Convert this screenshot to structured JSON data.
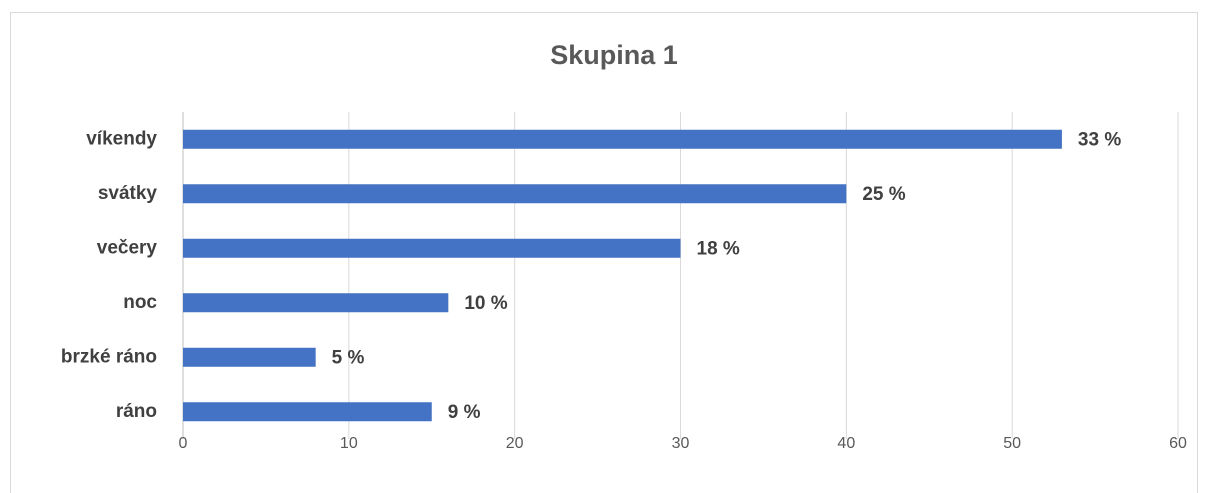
{
  "chart_data": {
    "type": "barh",
    "title": "Skupina 1",
    "categories": [
      "víkendy",
      "svátky",
      "večery",
      "noc",
      "brzké ráno",
      "ráno"
    ],
    "values": [
      53,
      40,
      30,
      16,
      8,
      15
    ],
    "value_labels": [
      "33 %",
      "25 %",
      "18 %",
      "10 %",
      "5 %",
      "9 %"
    ],
    "color": "#4472c4",
    "xlim": [
      0,
      60
    ],
    "xticks": [
      0,
      10,
      20,
      30,
      40,
      50,
      60
    ],
    "grid": true
  }
}
